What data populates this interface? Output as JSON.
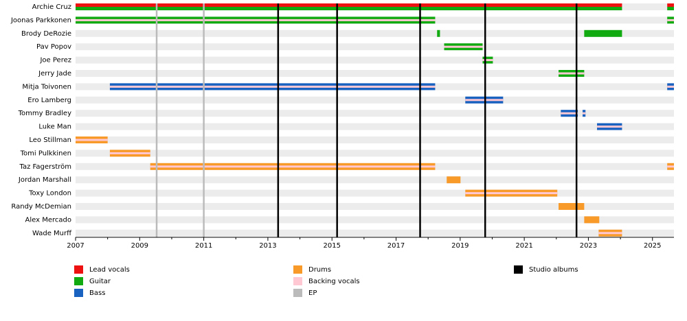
{
  "chart_data": {
    "type": "timeline",
    "categories": [
      "Archie Cruz",
      "Joonas Parkkonen",
      "Brody DeRozie",
      "Pav Popov",
      "Joe Perez",
      "Jerry Jade",
      "Mitja Toivonen",
      "Ero Lamberg",
      "Tommy Bradley",
      "Luke Man",
      "Leo Stillman",
      "Tomi Pulkkinen",
      "Taz Fagerström",
      "Jordan Marshall",
      "Toxy London",
      "Randy McDemian",
      "Alex Mercado",
      "Wade Murff"
    ],
    "xlim": [
      2007,
      2025.67
    ],
    "xticks": [
      2007,
      2009,
      2011,
      2013,
      2015,
      2017,
      2019,
      2021,
      2023,
      2025
    ],
    "minor_xticks": [
      2008,
      2010,
      2012,
      2014,
      2016,
      2018,
      2020,
      2022,
      2024
    ],
    "series": [
      {
        "name": "Lead vocals",
        "color": "#ee1111",
        "values": [
          [
            [
              2007,
              2024.05
            ],
            [
              2025.46,
              2025.67
            ]
          ],
          [],
          [],
          [],
          [],
          [],
          [],
          [],
          [],
          [],
          [],
          [],
          [],
          [],
          [],
          [],
          [],
          []
        ]
      },
      {
        "name": "Guitar",
        "color": "#11aa11",
        "values": [
          [
            [
              2007,
              2024.05
            ],
            [
              2025.46,
              2025.67
            ]
          ],
          [
            [
              2007,
              2018.22
            ],
            [
              2025.46,
              2025.67
            ]
          ],
          [
            [
              2018.28,
              2018.37
            ],
            [
              2022.87,
              2024.05
            ]
          ],
          [
            [
              2018.5,
              2019.7
            ]
          ],
          [
            [
              2019.7,
              2020.02
            ]
          ],
          [
            [
              2022.07,
              2022.87
            ]
          ],
          [],
          [],
          [],
          [],
          [],
          [],
          [],
          [],
          [],
          [],
          [],
          []
        ]
      },
      {
        "name": "Bass",
        "color": "#1a62c0",
        "values": [
          [],
          [],
          [],
          [],
          [],
          [],
          [
            [
              2008.07,
              2018.22
            ],
            [
              2025.46,
              2025.67
            ]
          ],
          [
            [
              2019.16,
              2020.34
            ]
          ],
          [
            [
              2022.14,
              2022.67
            ],
            [
              2022.82,
              2022.91
            ]
          ],
          [
            [
              2023.27,
              2024.05
            ]
          ],
          [],
          [],
          [],
          [],
          [],
          [],
          [],
          []
        ]
      },
      {
        "name": "Drums",
        "color": "#f79a2a",
        "values": [
          [],
          [],
          [],
          [],
          [],
          [],
          [],
          [],
          [],
          [],
          [
            [
              2007,
              2008
            ]
          ],
          [
            [
              2008.07,
              2009.33
            ]
          ],
          [
            [
              2009.33,
              2018.22
            ],
            [
              2025.46,
              2025.67
            ]
          ],
          [
            [
              2018.58,
              2019.01
            ]
          ],
          [
            [
              2019.16,
              2022.03
            ]
          ],
          [
            [
              2022.07,
              2022.87
            ]
          ],
          [
            [
              2022.87,
              2023.34
            ]
          ],
          [
            [
              2023.32,
              2024.05
            ]
          ]
        ]
      },
      {
        "name": "Backing vocals",
        "color": "#ffc8d2",
        "values": [
          [],
          [
            [
              2007,
              2018.22
            ],
            [
              2025.46,
              2025.67
            ]
          ],
          [],
          [
            [
              2018.5,
              2019.7
            ]
          ],
          [
            [
              2019.7,
              2020.02
            ]
          ],
          [
            [
              2022.07,
              2022.87
            ]
          ],
          [
            [
              2008.07,
              2018.22
            ],
            [
              2025.46,
              2025.67
            ]
          ],
          [
            [
              2019.16,
              2020.34
            ]
          ],
          [
            [
              2022.14,
              2022.67
            ],
            [
              2022.82,
              2022.91
            ]
          ],
          [
            [
              2023.27,
              2024.05
            ]
          ],
          [
            [
              2007,
              2008
            ]
          ],
          [
            [
              2008.07,
              2009.33
            ]
          ],
          [
            [
              2009.33,
              2018.22
            ],
            [
              2025.46,
              2025.67
            ]
          ],
          [],
          [
            [
              2019.16,
              2022.03
            ]
          ],
          [],
          [],
          [
            [
              2023.32,
              2024.05
            ]
          ]
        ]
      }
    ],
    "events": [
      {
        "name": "EP",
        "color": "#bbbbbb",
        "values": [
          2009.53,
          2011.0
        ]
      },
      {
        "name": "Studio albums",
        "color": "#000000",
        "values": [
          2013.32,
          2015.16,
          2017.75,
          2019.78,
          2022.63
        ]
      }
    ]
  }
}
